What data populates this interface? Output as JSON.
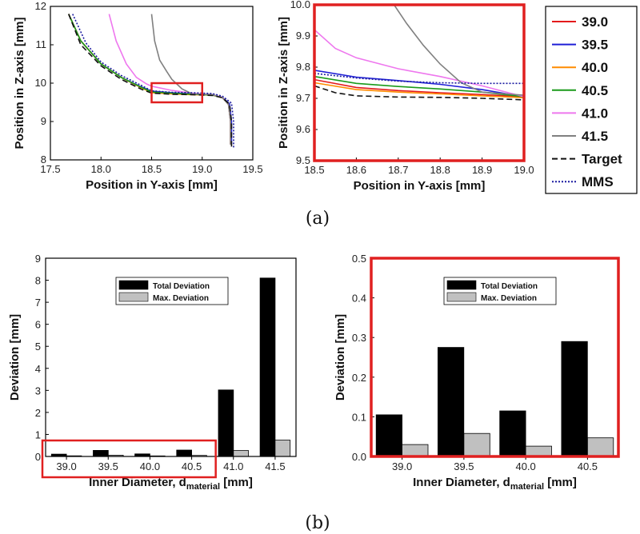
{
  "panel_labels": {
    "a": "(a)",
    "b": "(b)"
  },
  "chart_data": [
    {
      "id": "a-left",
      "type": "line",
      "xlabel": "Position in Y-axis [mm]",
      "ylabel": "Position in Z-axis [mm]",
      "xlim": [
        17.5,
        19.5
      ],
      "ylim": [
        8,
        12
      ],
      "xticks": [
        "17.5",
        "18.0",
        "18.5",
        "19.0",
        "19.5"
      ],
      "yticks": [
        "8",
        "9",
        "10",
        "11",
        "12"
      ],
      "series": [
        {
          "name": "39.0",
          "color": "#e41a1c",
          "dash": "",
          "x": [
            17.68,
            17.8,
            18.0,
            18.2,
            18.4,
            18.5,
            18.7,
            18.9,
            19.1,
            19.2,
            19.26,
            19.28,
            19.28
          ],
          "y": [
            11.8,
            11.1,
            10.5,
            10.15,
            9.88,
            9.76,
            9.73,
            9.71,
            9.69,
            9.62,
            9.45,
            9.0,
            8.4
          ]
        },
        {
          "name": "39.5",
          "color": "#1f1fd6",
          "dash": "",
          "x": [
            17.68,
            17.8,
            18.0,
            18.2,
            18.4,
            18.5,
            18.7,
            18.9,
            19.1,
            19.2,
            19.27,
            19.29,
            19.29
          ],
          "y": [
            11.8,
            11.1,
            10.5,
            10.15,
            9.9,
            9.79,
            9.75,
            9.72,
            9.7,
            9.63,
            9.46,
            9.0,
            8.4
          ]
        },
        {
          "name": "40.0",
          "color": "#ff8c00",
          "dash": "",
          "x": [
            17.68,
            17.8,
            18.0,
            18.2,
            18.4,
            18.5,
            18.7,
            18.9,
            19.1,
            19.2,
            19.26,
            19.28,
            19.28
          ],
          "y": [
            11.8,
            11.1,
            10.5,
            10.15,
            9.88,
            9.75,
            9.72,
            9.7,
            9.69,
            9.62,
            9.45,
            9.0,
            8.4
          ]
        },
        {
          "name": "40.5",
          "color": "#1a9a1a",
          "dash": "",
          "x": [
            17.68,
            17.8,
            18.0,
            18.2,
            18.4,
            18.5,
            18.7,
            18.9,
            19.1,
            19.2,
            19.26,
            19.28,
            19.28
          ],
          "y": [
            11.8,
            11.1,
            10.5,
            10.15,
            9.89,
            9.77,
            9.74,
            9.71,
            9.69,
            9.62,
            9.45,
            9.0,
            8.4
          ]
        },
        {
          "name": "41.0",
          "color": "#ee77ee",
          "dash": "",
          "x": [
            18.08,
            18.15,
            18.25,
            18.35,
            18.45,
            18.5,
            18.7,
            18.9,
            19.1,
            19.2,
            19.26,
            19.28,
            19.28
          ],
          "y": [
            11.8,
            11.1,
            10.5,
            10.15,
            9.98,
            9.92,
            9.81,
            9.74,
            9.7,
            9.63,
            9.45,
            9.0,
            8.4
          ]
        },
        {
          "name": "41.5",
          "color": "#808080",
          "dash": "",
          "x": [
            18.5,
            18.53,
            18.58,
            18.65,
            18.7,
            18.8,
            18.9,
            19.0,
            19.1,
            19.2,
            19.26,
            19.28,
            19.28
          ],
          "y": [
            11.8,
            11.1,
            10.6,
            10.3,
            10.1,
            9.85,
            9.72,
            9.71,
            9.7,
            9.62,
            9.45,
            9.0,
            8.4
          ]
        },
        {
          "name": "Target",
          "color": "#111111",
          "dash": "7,4",
          "x": [
            17.68,
            17.8,
            18.0,
            18.2,
            18.4,
            18.5,
            18.7,
            18.9,
            19.1,
            19.2,
            19.27,
            19.29,
            19.29
          ],
          "y": [
            11.8,
            11.0,
            10.45,
            10.1,
            9.84,
            9.74,
            9.71,
            9.7,
            9.68,
            9.62,
            9.45,
            9.0,
            8.3
          ]
        },
        {
          "name": "MMS",
          "color": "#1a1aa0",
          "dash": "2,2",
          "x": [
            17.72,
            17.85,
            18.0,
            18.2,
            18.4,
            18.5,
            18.7,
            18.9,
            19.1,
            19.2,
            19.29,
            19.31,
            19.31
          ],
          "y": [
            11.8,
            11.05,
            10.55,
            10.2,
            9.94,
            9.8,
            9.76,
            9.75,
            9.73,
            9.66,
            9.48,
            9.0,
            8.3
          ]
        }
      ],
      "zoom_box": {
        "xlim": [
          18.5,
          19.0
        ],
        "ylim": [
          9.5,
          10.0
        ]
      }
    },
    {
      "id": "a-right",
      "type": "line",
      "xlabel": "Position in Y-axis [mm]",
      "ylabel": "Position in Z-axis [mm]",
      "xlim": [
        18.5,
        19.0
      ],
      "ylim": [
        9.5,
        10.0
      ],
      "xticks": [
        "18.5",
        "18.6",
        "18.7",
        "18.8",
        "18.9",
        "19.0"
      ],
      "yticks": [
        "9.5",
        "9.6",
        "9.7",
        "9.8",
        "9.9",
        "10.0"
      ],
      "series": [
        {
          "name": "39.0",
          "color": "#e41a1c",
          "dash": "",
          "x": [
            18.5,
            18.6,
            18.7,
            18.8,
            18.9,
            19.0
          ],
          "y": [
            9.76,
            9.735,
            9.725,
            9.718,
            9.712,
            9.705
          ]
        },
        {
          "name": "39.5",
          "color": "#1f1fd6",
          "dash": "",
          "x": [
            18.5,
            18.6,
            18.7,
            18.8,
            18.9,
            19.0
          ],
          "y": [
            9.79,
            9.768,
            9.757,
            9.745,
            9.728,
            9.705
          ]
        },
        {
          "name": "40.0",
          "color": "#ff8c00",
          "dash": "",
          "x": [
            18.5,
            18.6,
            18.7,
            18.8,
            18.9,
            19.0
          ],
          "y": [
            9.75,
            9.728,
            9.72,
            9.714,
            9.708,
            9.702
          ]
        },
        {
          "name": "40.5",
          "color": "#1a9a1a",
          "dash": "",
          "x": [
            18.5,
            18.6,
            18.7,
            18.8,
            18.9,
            19.0
          ],
          "y": [
            9.77,
            9.748,
            9.738,
            9.73,
            9.72,
            9.705
          ]
        },
        {
          "name": "41.0",
          "color": "#ee77ee",
          "dash": "",
          "x": [
            18.5,
            18.55,
            18.6,
            18.7,
            18.8,
            18.9,
            19.0
          ],
          "y": [
            9.92,
            9.86,
            9.83,
            9.795,
            9.77,
            9.74,
            9.705
          ]
        },
        {
          "name": "41.5",
          "color": "#808080",
          "dash": "",
          "x": [
            18.69,
            18.72,
            18.76,
            18.8,
            18.85,
            18.9,
            18.95,
            19.0
          ],
          "y": [
            10.0,
            9.94,
            9.87,
            9.81,
            9.75,
            9.72,
            9.715,
            9.71
          ]
        },
        {
          "name": "Target",
          "color": "#111111",
          "dash": "7,4",
          "x": [
            18.5,
            18.55,
            18.6,
            18.7,
            18.8,
            18.9,
            19.0
          ],
          "y": [
            9.74,
            9.718,
            9.708,
            9.704,
            9.703,
            9.7,
            9.695
          ]
        },
        {
          "name": "MMS",
          "color": "#1a1aa0",
          "dash": "2,2",
          "x": [
            18.5,
            18.6,
            18.7,
            18.8,
            18.9,
            19.0
          ],
          "y": [
            9.78,
            9.765,
            9.755,
            9.75,
            9.748,
            9.748
          ]
        }
      ]
    },
    {
      "id": "b-left",
      "type": "bar",
      "categories": [
        "39.0",
        "39.5",
        "40.0",
        "40.5",
        "41.0",
        "41.5"
      ],
      "xlabel": "Inner Diameter, d",
      "xlabel_sub": "material",
      "xlabel_unit": " [mm]",
      "ylabel": "Deviation [mm]",
      "ylim": [
        0,
        9
      ],
      "yticks": [
        "0",
        "1",
        "2",
        "3",
        "4",
        "5",
        "6",
        "7",
        "8",
        "9"
      ],
      "series": [
        {
          "name": "Total Deviation",
          "color": "#000000",
          "values": [
            0.105,
            0.275,
            0.115,
            0.29,
            3.02,
            8.1
          ]
        },
        {
          "name": "Max. Deviation",
          "color": "#c0c0c0",
          "values": [
            0.03,
            0.058,
            0.026,
            0.047,
            0.27,
            0.74
          ]
        }
      ]
    },
    {
      "id": "b-right",
      "type": "bar",
      "categories": [
        "39.0",
        "39.5",
        "40.0",
        "40.5"
      ],
      "xlabel": "Inner Diameter, d",
      "xlabel_sub": "material",
      "xlabel_unit": " [mm]",
      "ylabel": "Deviation [mm]",
      "ylim": [
        0,
        0.5
      ],
      "yticks": [
        "0.0",
        "0.1",
        "0.2",
        "0.3",
        "0.4",
        "0.5"
      ],
      "series": [
        {
          "name": "Total Deviation",
          "color": "#000000",
          "values": [
            0.105,
            0.275,
            0.115,
            0.29
          ]
        },
        {
          "name": "Max. Deviation",
          "color": "#c0c0c0",
          "values": [
            0.03,
            0.058,
            0.026,
            0.047
          ]
        }
      ]
    }
  ],
  "legend_a": [
    "39.0",
    "39.5",
    "40.0",
    "40.5",
    "41.0",
    "41.5",
    "Target",
    "MMS"
  ],
  "highlight_color": "#e02020"
}
